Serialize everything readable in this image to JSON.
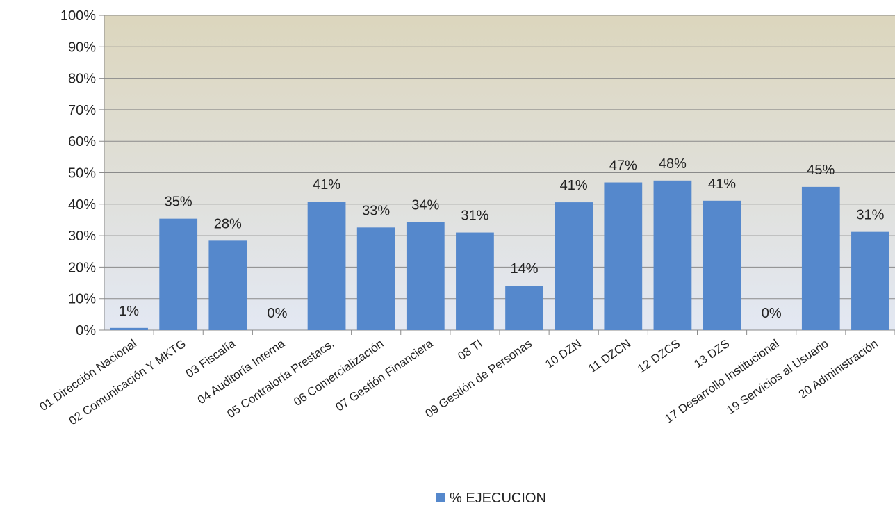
{
  "chart_data": {
    "type": "bar",
    "categories": [
      "01 Dirección Nacional",
      "02 Comunicación Y MKTG",
      "03 Fiscalía",
      "04 Auditoría Interna",
      "05 Contraloría Prestacs.",
      "06 Comercialización",
      "07 Gestión Financiera",
      "08 TI",
      "09 Gestión de Personas",
      "10 DZN",
      "11 DZCN",
      "12 DZCS",
      "13 DZS",
      "17 Desarrollo Institucional",
      "19 Servicios al Usuario",
      "20 Administración"
    ],
    "series": [
      {
        "name": "% EJECUCION",
        "color": "#5588cc",
        "values": [
          0.7,
          35.4,
          28.4,
          0,
          40.8,
          32.6,
          34.3,
          31,
          14.1,
          40.6,
          46.9,
          47.5,
          41.1,
          0,
          45.5,
          31.2
        ],
        "value_labels": [
          "1%",
          "35%",
          "28%",
          "0%",
          "41%",
          "33%",
          "34%",
          "31%",
          "14%",
          "41%",
          "47%",
          "48%",
          "41%",
          "0%",
          "45%",
          "31%"
        ]
      }
    ],
    "ylim": [
      0,
      100
    ],
    "yticks": [
      {
        "value": 0,
        "label": "0%"
      },
      {
        "value": 10,
        "label": "10%"
      },
      {
        "value": 20,
        "label": "20%"
      },
      {
        "value": 30,
        "label": "30%"
      },
      {
        "value": 40,
        "label": "40%"
      },
      {
        "value": 50,
        "label": "50%"
      },
      {
        "value": 60,
        "label": "60%"
      },
      {
        "value": 70,
        "label": "70%"
      },
      {
        "value": 80,
        "label": "80%"
      },
      {
        "value": 90,
        "label": "90%"
      },
      {
        "value": 100,
        "label": "100%"
      }
    ],
    "grid": true,
    "legend": "bottom"
  }
}
